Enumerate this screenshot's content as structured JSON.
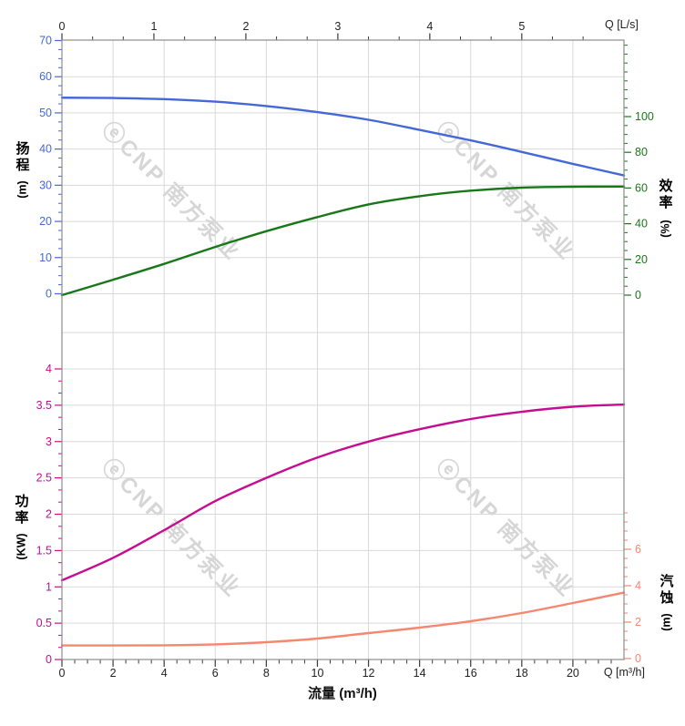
{
  "colors": {
    "head": "#4468d7",
    "efficiency": "#187818",
    "power": "#c60d8f",
    "npsh": "#f5876e",
    "grid": "#d9d9d9",
    "border": "#8c8c8c",
    "axis_dark": "#3a3a3a",
    "axis_text": "#222222",
    "watermark": "#d2d2d2"
  },
  "labels": {
    "q_ls": "Q [L/s]",
    "q_m3h": "Q [m³/h]",
    "flow_title": "流量 (m³/h)",
    "head_title": "扬程",
    "head_unit": "(m)",
    "eff_title": "效率",
    "eff_unit": "(%)",
    "power_title": "功率",
    "power_unit": "(KW)",
    "npsh_title": "汽蚀",
    "npsh_unit": "(m)"
  },
  "watermark": {
    "text": "ⓔCNP 南方泵业"
  },
  "chart_data": {
    "type": "line",
    "x_units": "m³/h",
    "x": [
      0,
      2,
      4,
      6,
      8,
      10,
      12,
      14,
      16,
      18,
      20,
      22
    ],
    "series": [
      {
        "name": "扬程",
        "axis": "head",
        "color": "head",
        "values": [
          54.2,
          54.1,
          53.8,
          53.1,
          51.9,
          50.2,
          48.1,
          45.3,
          42.4,
          39.2,
          35.9,
          32.7
        ]
      },
      {
        "name": "效率",
        "axis": "efficiency",
        "color": "efficiency",
        "values": [
          0,
          8.6,
          17.5,
          27.0,
          35.8,
          43.7,
          50.8,
          55.4,
          58.5,
          60.2,
          60.7,
          60.8
        ]
      },
      {
        "name": "功率",
        "axis": "power",
        "color": "power",
        "values": [
          1.09,
          1.4,
          1.78,
          2.18,
          2.5,
          2.78,
          3.0,
          3.17,
          3.31,
          3.41,
          3.48,
          3.51
        ]
      },
      {
        "name": "汽蚀",
        "axis": "npsh",
        "color": "npsh",
        "values": [
          0.72,
          0.72,
          0.73,
          0.78,
          0.9,
          1.1,
          1.4,
          1.7,
          2.05,
          2.5,
          3.05,
          3.62
        ]
      }
    ],
    "axes": {
      "x": {
        "label": "流量 (m³/h)",
        "corner_label": "Q [m³/h]",
        "range": [
          0,
          22
        ],
        "major_ticks": [
          0,
          2,
          4,
          6,
          8,
          10,
          12,
          14,
          16,
          18,
          20
        ],
        "minor_step": 0.5
      },
      "x_top": {
        "corner_label": "Q [L/s]",
        "major_ticks": [
          0,
          1,
          2,
          3,
          4,
          5
        ],
        "m3h_per_ls": 3.6,
        "minor_divisions": 3
      },
      "head": {
        "title": "扬程 (m)",
        "range": [
          0,
          70
        ],
        "major_step": 10,
        "minor_step": 2.5
      },
      "efficiency": {
        "title": "效率 (%)",
        "range": [
          0,
          100
        ],
        "major_step": 20,
        "minor_step": 5
      },
      "power": {
        "title": "功率 (KW)",
        "range": [
          0,
          4
        ],
        "major_step": 0.5,
        "minor_step": 0.1667
      },
      "npsh": {
        "title": "汽蚀 (m)",
        "range": [
          0,
          6
        ],
        "major_step": 2,
        "minor_step": 0.5
      }
    },
    "grid": true,
    "legend": false
  }
}
